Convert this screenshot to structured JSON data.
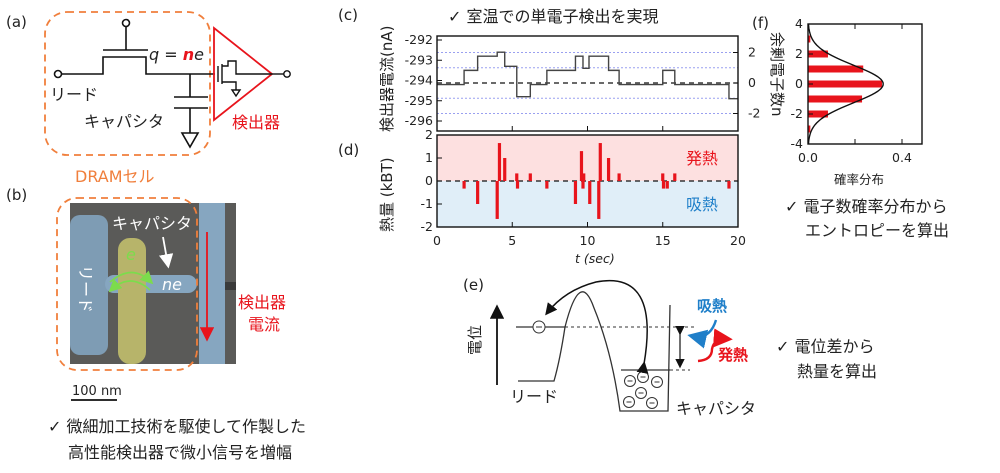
{
  "panel_a": {
    "label": "(a)",
    "charge_label": "q = ",
    "charge_n": "n",
    "charge_e": "e",
    "lead_label": "リード",
    "capacitor_label": "キャパシタ",
    "detector_label": "検出器",
    "dram_label": "DRAMセル",
    "colors": {
      "detector": "#e8141c",
      "dram_box": "#f07f3c"
    }
  },
  "panel_b": {
    "label": "(b)",
    "capacitor_label": "キャパシタ",
    "lead_label": "リード",
    "electron_label": "e",
    "charge_label": "ne",
    "detector_current_line1": "検出器",
    "detector_current_line2": "電流",
    "scale_bar": "100 nm",
    "caption_line1": "✓ 微細加工技術を駆使して作製した",
    "caption_line2": "高性能検出器で微小信号を増幅"
  },
  "panel_c": {
    "label": "(c)",
    "title": "✓ 室温での単電子検出を実現"
  },
  "panel_d": {
    "label": "(d)",
    "heat_release": "発熱",
    "heat_absorb": "吸熱"
  },
  "panel_e": {
    "label": "(e)",
    "potential_label": "電位",
    "lead_label": "リード",
    "capacitor_label": "キャパシタ",
    "absorb_label": "吸熱",
    "release_label": "発熱",
    "caption_line1": "✓ 電位差から",
    "caption_line2": "熱量を算出"
  },
  "panel_f": {
    "label": "(f)",
    "caption_line1": "✓ 電子数確率分布から",
    "caption_line2": "エントロピーを算出"
  },
  "chart_data": [
    {
      "id": "c",
      "type": "line",
      "ylabel": "検出器電流(nA)",
      "ylim": [
        -296.4,
        -291.9
      ],
      "yticks": [
        "-292",
        "-293",
        "-294",
        "-295",
        "-296"
      ],
      "right_axis_ticks": [
        "2",
        "0",
        "-2"
      ],
      "xlim": [
        0,
        20
      ],
      "grid": "horizontal dotted lines at electron levels, dashed at 0",
      "steps": [
        [
          0,
          -294.2
        ],
        [
          1.8,
          -293.5
        ],
        [
          2.7,
          -292.8
        ],
        [
          4.0,
          -292.6
        ],
        [
          4.5,
          -293.3
        ],
        [
          5.3,
          -294.8
        ],
        [
          6.2,
          -294.2
        ],
        [
          7.3,
          -293.5
        ],
        [
          9.2,
          -292.8
        ],
        [
          9.7,
          -293.4
        ],
        [
          10.1,
          -292.8
        ],
        [
          11.4,
          -293.5
        ],
        [
          12.1,
          -294.2
        ],
        [
          15.0,
          -293.5
        ],
        [
          15.8,
          -294.2
        ],
        [
          19.4,
          -294.9
        ],
        [
          20,
          -294.9
        ]
      ],
      "color": "#444444"
    },
    {
      "id": "d",
      "type": "bar",
      "ylabel": "熱量 (kBT)",
      "xlabel": "t (sec)",
      "xlim": [
        0,
        20
      ],
      "ylim": [
        -2,
        2
      ],
      "xticks": [
        "0",
        "5",
        "10",
        "15",
        "20"
      ],
      "yticks": [
        "2",
        "1",
        "0",
        "-1",
        "-2"
      ],
      "bars": [
        [
          1.8,
          -0.33
        ],
        [
          2.7,
          -1.0
        ],
        [
          4.0,
          -1.65
        ],
        [
          4.15,
          1.65
        ],
        [
          4.5,
          1.0
        ],
        [
          5.3,
          0.33
        ],
        [
          5.35,
          -0.33
        ],
        [
          6.2,
          0.33
        ],
        [
          7.3,
          -0.33
        ],
        [
          9.2,
          -1.0
        ],
        [
          9.6,
          1.3
        ],
        [
          9.75,
          0.33
        ],
        [
          9.7,
          -0.33
        ],
        [
          10.15,
          -1.0
        ],
        [
          10.75,
          -1.65
        ],
        [
          10.85,
          1.65
        ],
        [
          11.4,
          1.0
        ],
        [
          12.1,
          0.33
        ],
        [
          15.0,
          0.33
        ],
        [
          15.05,
          -0.33
        ],
        [
          15.3,
          -0.33
        ],
        [
          15.8,
          0.33
        ],
        [
          19.4,
          -0.33
        ]
      ],
      "color": "#e8141c",
      "bg_positive": "#fde0e0",
      "bg_negative": "#e0eef8"
    },
    {
      "id": "f",
      "type": "bar",
      "orientation": "horizontal",
      "xlabel": "確率分布",
      "ylabel": "余剰電子数n",
      "xlim": [
        0,
        0.5
      ],
      "ylim": [
        -4,
        4
      ],
      "xticks": [
        "0.0",
        "0.4"
      ],
      "yticks": [
        "4",
        "2",
        "0",
        "-2",
        "-4"
      ],
      "categories": [
        -3,
        -2,
        -1,
        0,
        1,
        2,
        3
      ],
      "values": [
        0.01,
        0.085,
        0.23,
        0.315,
        0.235,
        0.085,
        0.01
      ],
      "fit": {
        "type": "gaussian",
        "mean": 0,
        "sigma": 1.25,
        "peak": 0.32
      },
      "color": "#e8141c"
    }
  ]
}
